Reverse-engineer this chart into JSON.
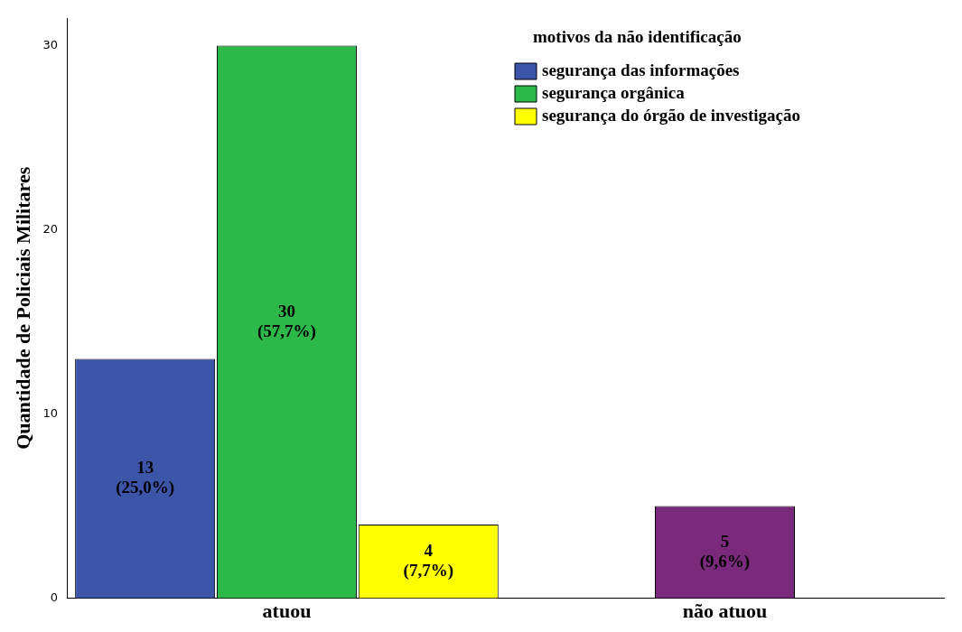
{
  "chart_data": {
    "type": "bar",
    "ylabel": "Quantidade de Policiais Militares",
    "legend_title": "motivos da não identificação",
    "categories": [
      "atuou",
      "não atuou"
    ],
    "series": [
      {
        "name": "segurança das informações",
        "color": "#3d55a9",
        "values": [
          13,
          null
        ],
        "value_labels": [
          "13 (25,0%)",
          null
        ]
      },
      {
        "name": "segurança orgânica",
        "color": "#2db84a",
        "values": [
          30,
          null
        ],
        "value_labels": [
          "30 (57,7%)",
          null
        ]
      },
      {
        "name": "segurança do órgão de investigação",
        "color": "#ffff00",
        "values": [
          4,
          null
        ],
        "value_labels": [
          "4 (7,7%)",
          null
        ]
      },
      {
        "color": "#7a2a7d",
        "values": [
          null,
          5
        ],
        "value_labels": [
          null,
          "5 (9,6%)"
        ]
      }
    ],
    "ylim": [
      0,
      31.5
    ],
    "yticks": [
      0,
      10,
      20,
      30
    ],
    "grid": false,
    "legend": "top right"
  }
}
